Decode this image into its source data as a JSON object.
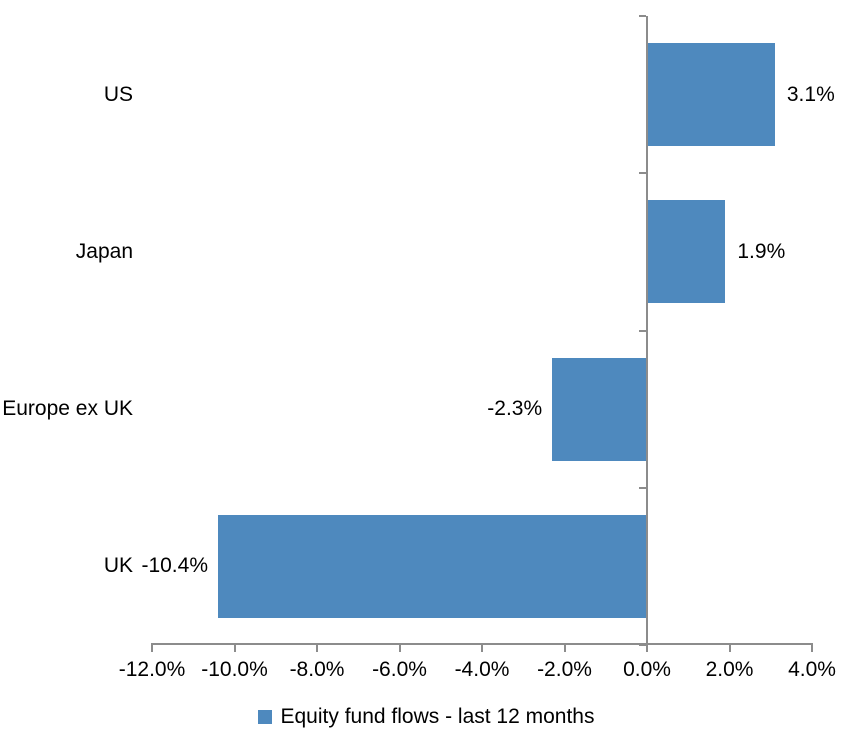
{
  "chart_data": {
    "type": "bar",
    "orientation": "horizontal",
    "categories": [
      "US",
      "Japan",
      "Europe ex UK",
      "UK"
    ],
    "values": [
      3.1,
      1.9,
      -2.3,
      -10.4
    ],
    "data_labels": [
      "3.1%",
      "1.9%",
      "-2.3%",
      "-10.4%"
    ],
    "x_tick_values": [
      -12,
      -10,
      -8,
      -6,
      -4,
      -2,
      0,
      2,
      4
    ],
    "x_tick_labels": [
      "-12.0%",
      "-10.0%",
      "-8.0%",
      "-6.0%",
      "-4.0%",
      "-2.0%",
      "0.0%",
      "2.0%",
      "4.0%"
    ],
    "xlim": [
      -12,
      4
    ],
    "grid": false,
    "legend_position": "bottom",
    "legend_label": "Equity fund flows - last 12 months",
    "bar_color": "#4E89BE",
    "axis_color": "#8C8C8C",
    "text_color": "#000000"
  }
}
